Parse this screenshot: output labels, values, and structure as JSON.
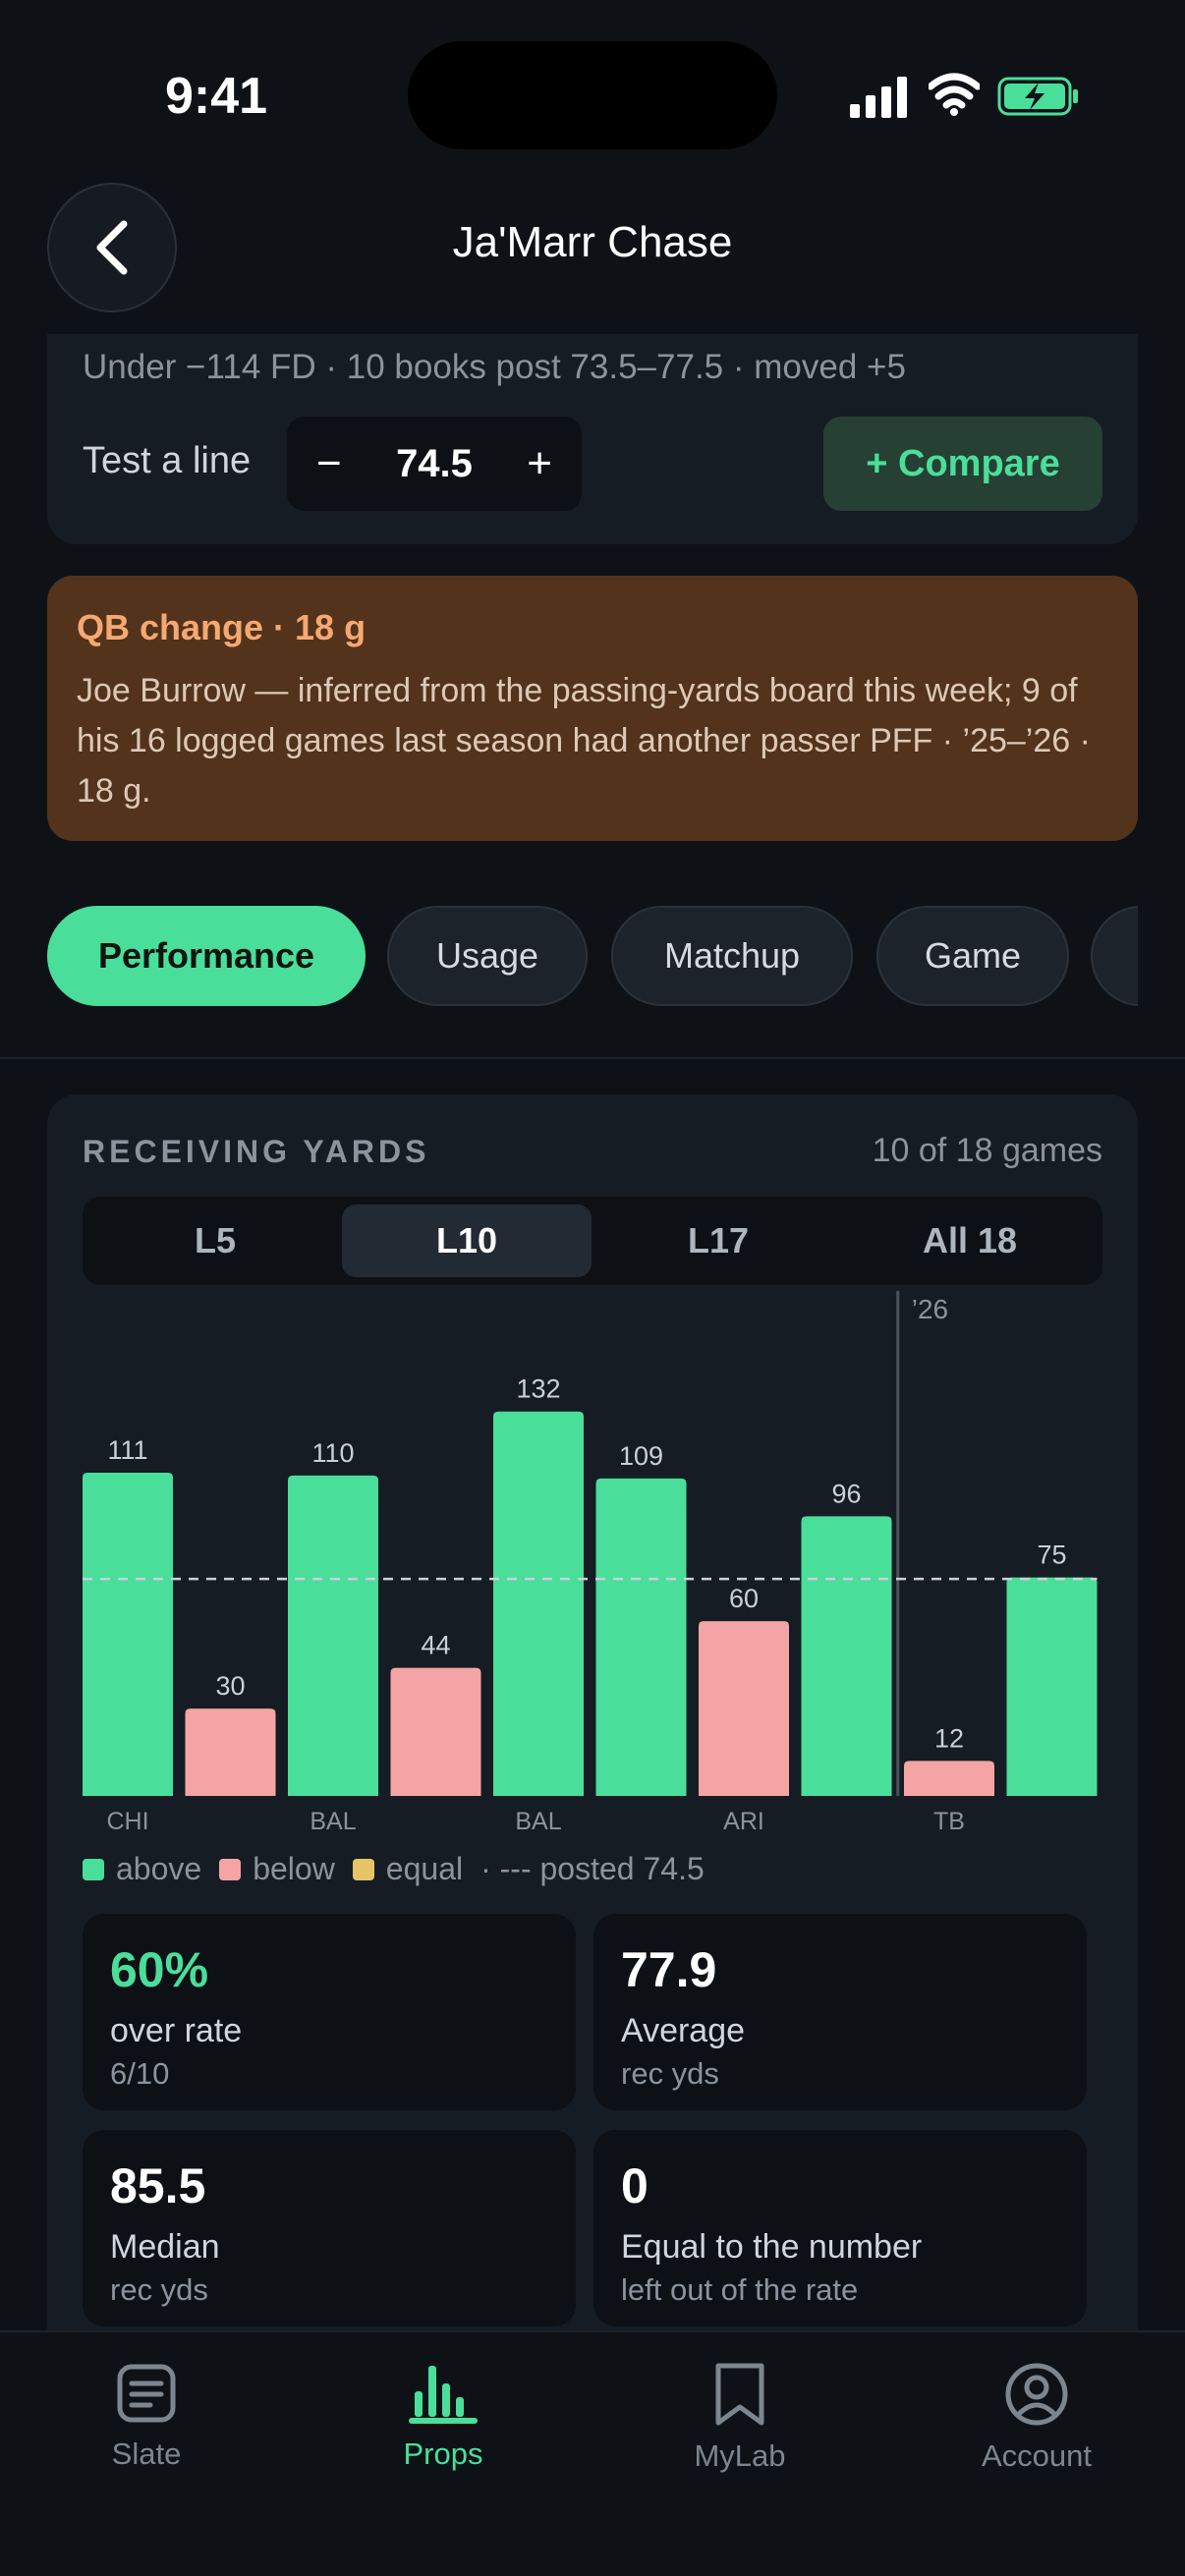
{
  "status_bar": {
    "time": "9:41"
  },
  "header": {
    "title": "Ja'Marr Chase"
  },
  "line_card": {
    "odds_line": "Under −114 FD · 10 books post 73.5–77.5 · moved +5",
    "test_label": "Test a line",
    "minus": "−",
    "line_value": "74.5",
    "plus": "+",
    "compare_label": "+ Compare"
  },
  "alert": {
    "title": "QB change · 18 g",
    "body": "Joe Burrow — inferred from the passing-yards board this week; 9 of his 16 logged games last season had another passer PFF · ’25–’26 · 18 g."
  },
  "tabs": [
    {
      "label": "Performance",
      "active": true
    },
    {
      "label": "Usage",
      "active": false
    },
    {
      "label": "Matchup",
      "active": false
    },
    {
      "label": "Game",
      "active": false
    },
    {
      "label": "",
      "active": false
    }
  ],
  "receiving": {
    "title": "RECEIVING YARDS",
    "count": "10 of 18 games",
    "ranges": [
      {
        "label": "L5",
        "active": false
      },
      {
        "label": "L10",
        "active": true
      },
      {
        "label": "L17",
        "active": false
      },
      {
        "label": "All 18",
        "active": false
      }
    ],
    "season_marker": "’26",
    "legend": {
      "above": "above",
      "below": "below",
      "equal": "equal",
      "posted": "· --- posted 74.5"
    },
    "stats": [
      {
        "value": "60%",
        "label": "over rate",
        "sub": "6/10"
      },
      {
        "value": "77.9",
        "label": "Average",
        "sub": "rec yds"
      },
      {
        "value": "85.5",
        "label": "Median",
        "sub": "rec yds"
      },
      {
        "value": "0",
        "label": "Equal to the number",
        "sub": "left out of the rate"
      }
    ]
  },
  "chart_data": {
    "type": "bar",
    "values": [
      111,
      30,
      110,
      44,
      132,
      109,
      60,
      96,
      12,
      75
    ],
    "categories": [
      "CHI",
      "",
      "BAL",
      "",
      "BAL",
      "",
      "ARI",
      "",
      "TB",
      ""
    ],
    "posted_line": 74.5,
    "ylim": [
      0,
      140
    ],
    "season_break_after_index": 7,
    "colors": {
      "above": "#4ade9b",
      "below": "#f4a4a4",
      "equal": "#e8c468",
      "line": "#c9d1d8"
    }
  },
  "nav": [
    {
      "label": "Slate",
      "icon": "document-icon",
      "active": false
    },
    {
      "label": "Props",
      "icon": "bar-chart-icon",
      "active": true
    },
    {
      "label": "MyLab",
      "icon": "bookmark-icon",
      "active": false
    },
    {
      "label": "Account",
      "icon": "user-circle-icon",
      "active": false
    }
  ]
}
